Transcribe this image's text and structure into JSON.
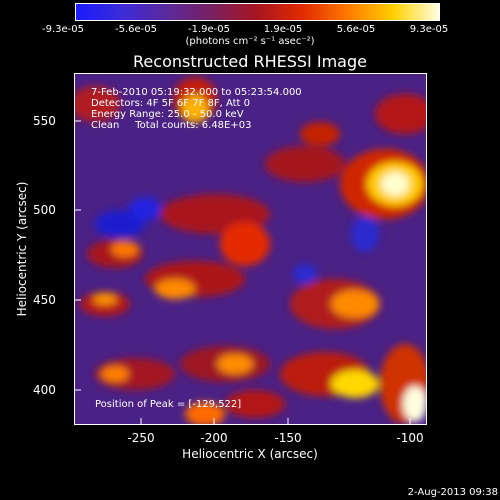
{
  "colorbar": {
    "tick_labels": [
      "-9.3e-05",
      "-5.6e-05",
      "-1.9e-05",
      "1.9e-05",
      "5.6e-05",
      "9.3e-05"
    ],
    "unit": "(photons cm⁻² s⁻¹ asec⁻²)",
    "colors": [
      "#1b1bff",
      "#3b2bd8",
      "#5a2a9c",
      "#7a1f60",
      "#a8151f",
      "#e12b00",
      "#ff7a00",
      "#ffd000",
      "#ffffe0"
    ]
  },
  "title": "Reconstructed RHESSI Image",
  "info": {
    "time_range": "7-Feb-2010 05:19:32.000 to 05:23:54.000",
    "detectors": "Detectors: 4F 5F 6F 7F 8F, Att 0",
    "energy": "Energy Range: 25.0 - 50.0 keV",
    "algorithm": "Clean     Total counts: 6.48E+03",
    "peak": "Position of Peak = [-129,522]"
  },
  "axes": {
    "xlabel": "Heliocentric X (arcsec)",
    "ylabel": "Heliocentric Y (arcsec)",
    "xticks": [
      "-250",
      "-200",
      "-150",
      "-100"
    ],
    "yticks": [
      "550",
      "500",
      "450",
      "400"
    ]
  },
  "footer": {
    "timestamp": "2-Aug-2013 09:38"
  }
}
